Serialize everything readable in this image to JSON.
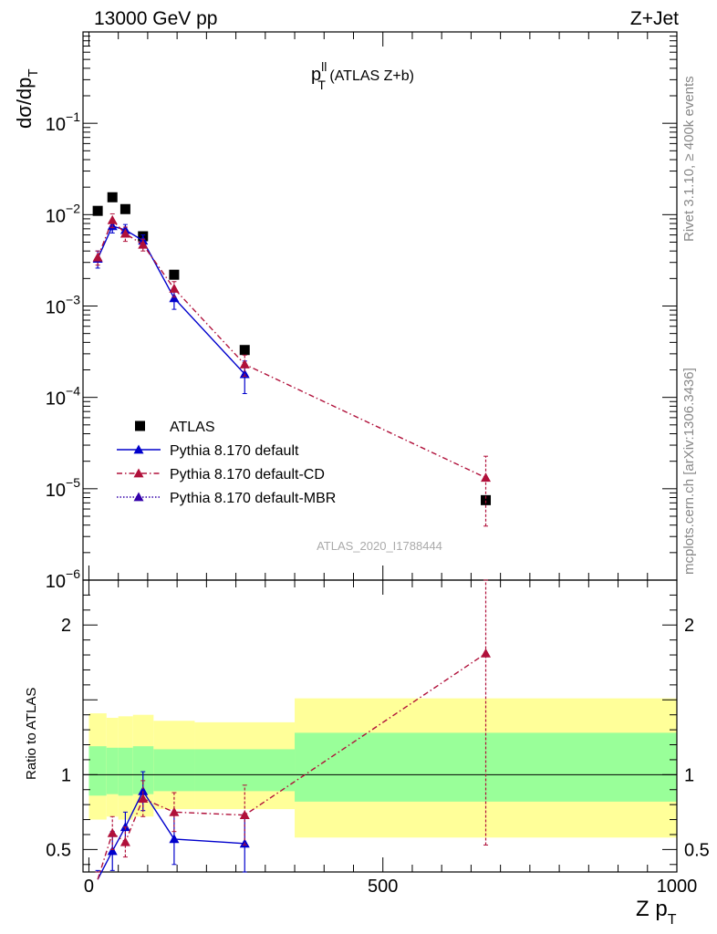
{
  "header": {
    "left": "13000 GeV pp",
    "right": "Z+Jet"
  },
  "plot_title": {
    "main": "p",
    "sup": "ll",
    "sub": "T",
    "rest": " (ATLAS Z+b)"
  },
  "side_labels": {
    "rivet": "Rivet 3.1.10, ≥ 400k events",
    "mcplots": "mcplots.cern.ch [arXiv:1306.3436]"
  },
  "watermark": "ATLAS_2020_I1788444",
  "ylabel_top": {
    "main": "dσ/dp",
    "sub": "T"
  },
  "ylabel_bottom": "Ratio to ATLAS",
  "xlabel": {
    "main": "Z p",
    "sub": "T"
  },
  "colors": {
    "data": "#000000",
    "default": "#0000cc",
    "cd": "#b0103a",
    "mbr": "#3300aa",
    "band_inner": "#99ff99",
    "band_outer": "#ffff99"
  },
  "chart_data": [
    {
      "type": "scatter",
      "panel": "main",
      "yscale": "log",
      "xlim": [
        -10,
        1000
      ],
      "ylim": [
        1e-06,
        1
      ],
      "yticks": [
        {
          "value": 1e-06,
          "label": "10",
          "exp": "−6"
        },
        {
          "value": 1e-05,
          "label": "10",
          "exp": "−5"
        },
        {
          "value": 0.0001,
          "label": "10",
          "exp": "−4"
        },
        {
          "value": 0.001,
          "label": "10",
          "exp": "−3"
        },
        {
          "value": 0.01,
          "label": "10",
          "exp": "−2"
        },
        {
          "value": 0.1,
          "label": "10",
          "exp": "−1"
        }
      ],
      "legend_position": "bottom-left",
      "series": [
        {
          "name": "ATLAS",
          "style": "square-marker",
          "x": [
            15,
            40,
            62,
            92,
            145,
            265,
            675
          ],
          "y": [
            0.011,
            0.0155,
            0.0115,
            0.0058,
            0.0022,
            0.00033,
            7.5e-06
          ]
        },
        {
          "name": "Pythia 8.170 default",
          "style": "solid",
          "x": [
            15,
            40,
            62,
            92,
            145,
            265
          ],
          "y": [
            0.0033,
            0.0075,
            0.0068,
            0.0052,
            0.00122,
            0.00018
          ],
          "yerr_lo": [
            0.0007,
            0.0012,
            0.001,
            0.0008,
            0.0003,
            7e-05
          ],
          "yerr_hi": [
            0.0007,
            0.0012,
            0.001,
            0.0008,
            0.0003,
            7e-05
          ]
        },
        {
          "name": "Pythia 8.170 default-CD",
          "style": "dash-dot",
          "x": [
            15,
            40,
            62,
            92,
            145,
            265,
            675
          ],
          "y": [
            0.0034,
            0.0087,
            0.0062,
            0.0047,
            0.00155,
            0.00023,
            1.32e-05
          ],
          "yerr_lo": [
            0.0006,
            0.0015,
            0.0011,
            0.0007,
            0.0003,
            6e-05,
            9.3e-06
          ],
          "yerr_hi": [
            0.0006,
            0.0015,
            0.0011,
            0.0007,
            0.0003,
            6e-05,
            9.5e-06
          ]
        },
        {
          "name": "Pythia 8.170 default-MBR",
          "style": "dotted",
          "x": [],
          "y": []
        }
      ]
    },
    {
      "type": "line",
      "panel": "ratio",
      "xlim": [
        -10,
        1000
      ],
      "ylim": [
        0.35,
        2.3
      ],
      "yticks": [
        {
          "value": 0.5,
          "label": "0.5"
        },
        {
          "value": 1,
          "label": "1"
        },
        {
          "value": 2,
          "label": "2"
        }
      ],
      "xticks": [
        {
          "value": 0,
          "label": "0"
        },
        {
          "value": 500,
          "label": "500"
        },
        {
          "value": 1000,
          "label": "1000"
        }
      ],
      "reference_line": 1,
      "bands": [
        {
          "x0": 0,
          "x1": 30,
          "inner": [
            0.86,
            1.19
          ],
          "outer": [
            0.7,
            1.41
          ]
        },
        {
          "x0": 30,
          "x1": 50,
          "inner": [
            0.87,
            1.18
          ],
          "outer": [
            0.72,
            1.38
          ]
        },
        {
          "x0": 50,
          "x1": 75,
          "inner": [
            0.86,
            1.18
          ],
          "outer": [
            0.7,
            1.39
          ]
        },
        {
          "x0": 75,
          "x1": 110,
          "inner": [
            0.87,
            1.19
          ],
          "outer": [
            0.72,
            1.4
          ]
        },
        {
          "x0": 110,
          "x1": 180,
          "inner": [
            0.89,
            1.17
          ],
          "outer": [
            0.77,
            1.36
          ]
        },
        {
          "x0": 180,
          "x1": 350,
          "inner": [
            0.89,
            1.17
          ],
          "outer": [
            0.77,
            1.35
          ]
        },
        {
          "x0": 350,
          "x1": 1000,
          "inner": [
            0.82,
            1.28
          ],
          "outer": [
            0.58,
            1.51
          ]
        }
      ],
      "series": [
        {
          "name": "Pythia 8.170 default",
          "style": "solid",
          "x": [
            15,
            40,
            62,
            92,
            145,
            265
          ],
          "y": [
            0.3,
            0.49,
            0.65,
            0.89,
            0.57,
            0.54
          ],
          "yerr_lo": [
            0.06,
            0.13,
            0.1,
            0.13,
            0.17,
            0.2
          ],
          "yerr_hi": [
            0.06,
            0.13,
            0.1,
            0.13,
            0.17,
            0.2
          ]
        },
        {
          "name": "Pythia 8.170 default-CD",
          "style": "dash-dot",
          "x": [
            15,
            40,
            62,
            92,
            145,
            265,
            675
          ],
          "y": [
            0.3,
            0.61,
            0.55,
            0.84,
            0.75,
            0.73,
            1.81
          ],
          "yerr_lo": [
            0.05,
            0.11,
            0.1,
            0.12,
            0.13,
            0.2,
            1.28
          ],
          "yerr_hi": [
            0.05,
            0.11,
            0.1,
            0.12,
            0.13,
            0.2,
            1.3
          ]
        }
      ]
    }
  ]
}
